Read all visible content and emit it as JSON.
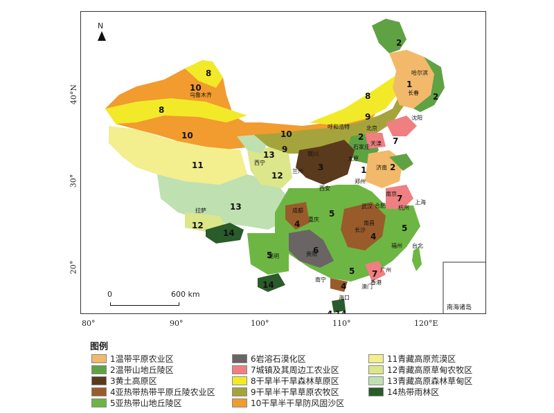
{
  "map": {
    "north_label": "N",
    "scale_zero": "0",
    "scale_text": "600 km",
    "inset_label": "南海诸岛",
    "lat_ticks": [
      "40°N",
      "30°",
      "20°"
    ],
    "lon_ticks": [
      "80°",
      "90°",
      "100°",
      "110°",
      "120°E"
    ]
  },
  "regions": [
    {
      "id": "1",
      "label": "温带平原农业区",
      "color": "#f2b96a"
    },
    {
      "id": "2",
      "label": "温带山地丘陵区",
      "color": "#5fa244"
    },
    {
      "id": "3",
      "label": "黄土高原区",
      "color": "#5a3a1c"
    },
    {
      "id": "4",
      "label": "亚热带热带平原丘陵农业区",
      "color": "#9a5b2b"
    },
    {
      "id": "5",
      "label": "亚热带山地丘陵区",
      "color": "#6db643"
    },
    {
      "id": "6",
      "label": "岩溶石漠化区",
      "color": "#6a6464"
    },
    {
      "id": "7",
      "label": "城镇及其周边工农业区",
      "color": "#ef7f80"
    },
    {
      "id": "8",
      "label": "干旱半干旱森林草原区",
      "color": "#f2ea28"
    },
    {
      "id": "9",
      "label": "干旱半干旱草原农牧区",
      "color": "#a5a43c"
    },
    {
      "id": "10",
      "label": "干旱半干旱防风固沙区",
      "color": "#f29b2e"
    },
    {
      "id": "11",
      "label": "青藏高原荒漠区",
      "color": "#f3ee8e"
    },
    {
      "id": "12",
      "label": "青藏高原草甸农牧区",
      "color": "#dce68a"
    },
    {
      "id": "13",
      "label": "青藏高原森林草甸区",
      "color": "#bfe0b0"
    },
    {
      "id": "14",
      "label": "热带雨林区",
      "color": "#2a5b2a"
    }
  ],
  "legend": {
    "title": "图例"
  },
  "cities": [
    "乌鲁木齐",
    "哈尔滨",
    "长春",
    "沈阳",
    "呼和浩特",
    "北京",
    "天津",
    "石家庄",
    "太原",
    "银川",
    "西宁",
    "兰州",
    "济南",
    "郑州",
    "西安",
    "南京",
    "上海",
    "合肥",
    "杭州",
    "武汉",
    "成都",
    "重庆",
    "南昌",
    "长沙",
    "福州",
    "台北",
    "贵阳",
    "昆明",
    "广州",
    "南宁",
    "香港",
    "澳门",
    "海口",
    "拉萨"
  ]
}
